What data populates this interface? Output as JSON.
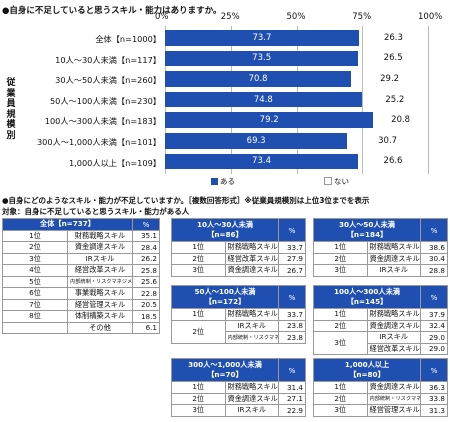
{
  "q1": "●自身に不足していると思うスキル・能力はありますか。",
  "q2": "●自身にどのようなスキル・能力が不足していますか。［複数回答形式］※従業員規模別は上位3位までを表示",
  "target": "対象：自身に不足していると思うスキル・能力がある人",
  "group_label": "従業員規模別",
  "chart_data": {
    "type": "bar",
    "stacked": true,
    "orientation": "horizontal",
    "xlim": [
      0,
      100
    ],
    "ticks": [
      "0%",
      "25%",
      "50%",
      "75%",
      "100%"
    ],
    "categories": [
      "全体【n=1000】",
      "10人～30人未満【n=117】",
      "30人～50人未満【n=260】",
      "50人～100人未満【n=230】",
      "100人～300人未満【n=183】",
      "300人～1,000人未満【n=101】",
      "1,000人以上【n=109】"
    ],
    "series": [
      {
        "name": "ある",
        "color": "#1f4fb0",
        "values": [
          73.7,
          73.5,
          70.8,
          74.8,
          79.2,
          69.3,
          73.4
        ]
      },
      {
        "name": "ない",
        "color": "#ffffff",
        "values": [
          26.3,
          26.5,
          29.2,
          25.2,
          20.8,
          30.7,
          26.6
        ]
      }
    ]
  },
  "pct_header": "%",
  "rank_labels": [
    "1位",
    "2位",
    "3位",
    "4位",
    "5位",
    "6位",
    "7位",
    "8位"
  ],
  "t_all": {
    "title": "全体【n=737】",
    "rows": [
      {
        "item": "財務戦略スキル",
        "val": "35.1"
      },
      {
        "item": "資金調達スキル",
        "val": "28.4"
      },
      {
        "item": "IRスキル",
        "val": "26.2"
      },
      {
        "item": "経営改革スキル",
        "val": "25.8"
      },
      {
        "item": "内部統制・リスクマネジメントスキル",
        "val": "25.6"
      },
      {
        "item": "事業戦略スキル",
        "val": "22.8"
      },
      {
        "item": "経営管理スキル",
        "val": "20.5"
      },
      {
        "item": "体制構築スキル",
        "val": "18.5"
      },
      {
        "item": "その他",
        "val": "6.1"
      }
    ]
  },
  "t_10_30": {
    "title": "10人～30人未満\n【n=86】",
    "rows": [
      {
        "item": "財務戦略スキル",
        "val": "33.7"
      },
      {
        "item": "経営改革スキル",
        "val": "27.9"
      },
      {
        "item": "資金調達スキル",
        "val": "26.7"
      }
    ]
  },
  "t_30_50": {
    "title": "30人～50人未満\n【n=184】",
    "rows": [
      {
        "item": "財務戦略スキル",
        "val": "38.6"
      },
      {
        "item": "資金調達スキル",
        "val": "30.4"
      },
      {
        "item": "IRスキル",
        "val": "28.8"
      }
    ]
  },
  "t_50_100": {
    "title": "50人～100人未満\n【n=172】",
    "rows": [
      {
        "item": "財務戦略スキル",
        "val": "33.7"
      },
      {
        "item": "IRスキル",
        "val": "23.8"
      },
      {
        "item": "内部統制・リスクマネジメントスキル",
        "val": "23.8"
      }
    ]
  },
  "t_100_300": {
    "title": "100人～300人未満\n【n=145】",
    "rows": [
      {
        "item": "財務戦略スキル",
        "val": "37.9"
      },
      {
        "item": "資金調達スキル",
        "val": "32.4"
      },
      {
        "item": "IRスキル",
        "val": "29.0"
      },
      {
        "item": "経営改革スキル",
        "val": "29.0"
      }
    ]
  },
  "t_300_1000": {
    "title": "300人～1,000人未満\n【n=70】",
    "rows": [
      {
        "item": "財務戦略スキル",
        "val": "31.4"
      },
      {
        "item": "資金調達スキル",
        "val": "27.1"
      },
      {
        "item": "IRスキル",
        "val": "22.9"
      }
    ]
  },
  "t_1000": {
    "title": "1,000人以上\n【n=80】",
    "rows": [
      {
        "item": "資金調達スキル",
        "val": "36.3"
      },
      {
        "item": "内部統制・リスクマネジメントスキル",
        "val": "33.8"
      },
      {
        "item": "経営管理スキル",
        "val": "31.3"
      }
    ]
  }
}
